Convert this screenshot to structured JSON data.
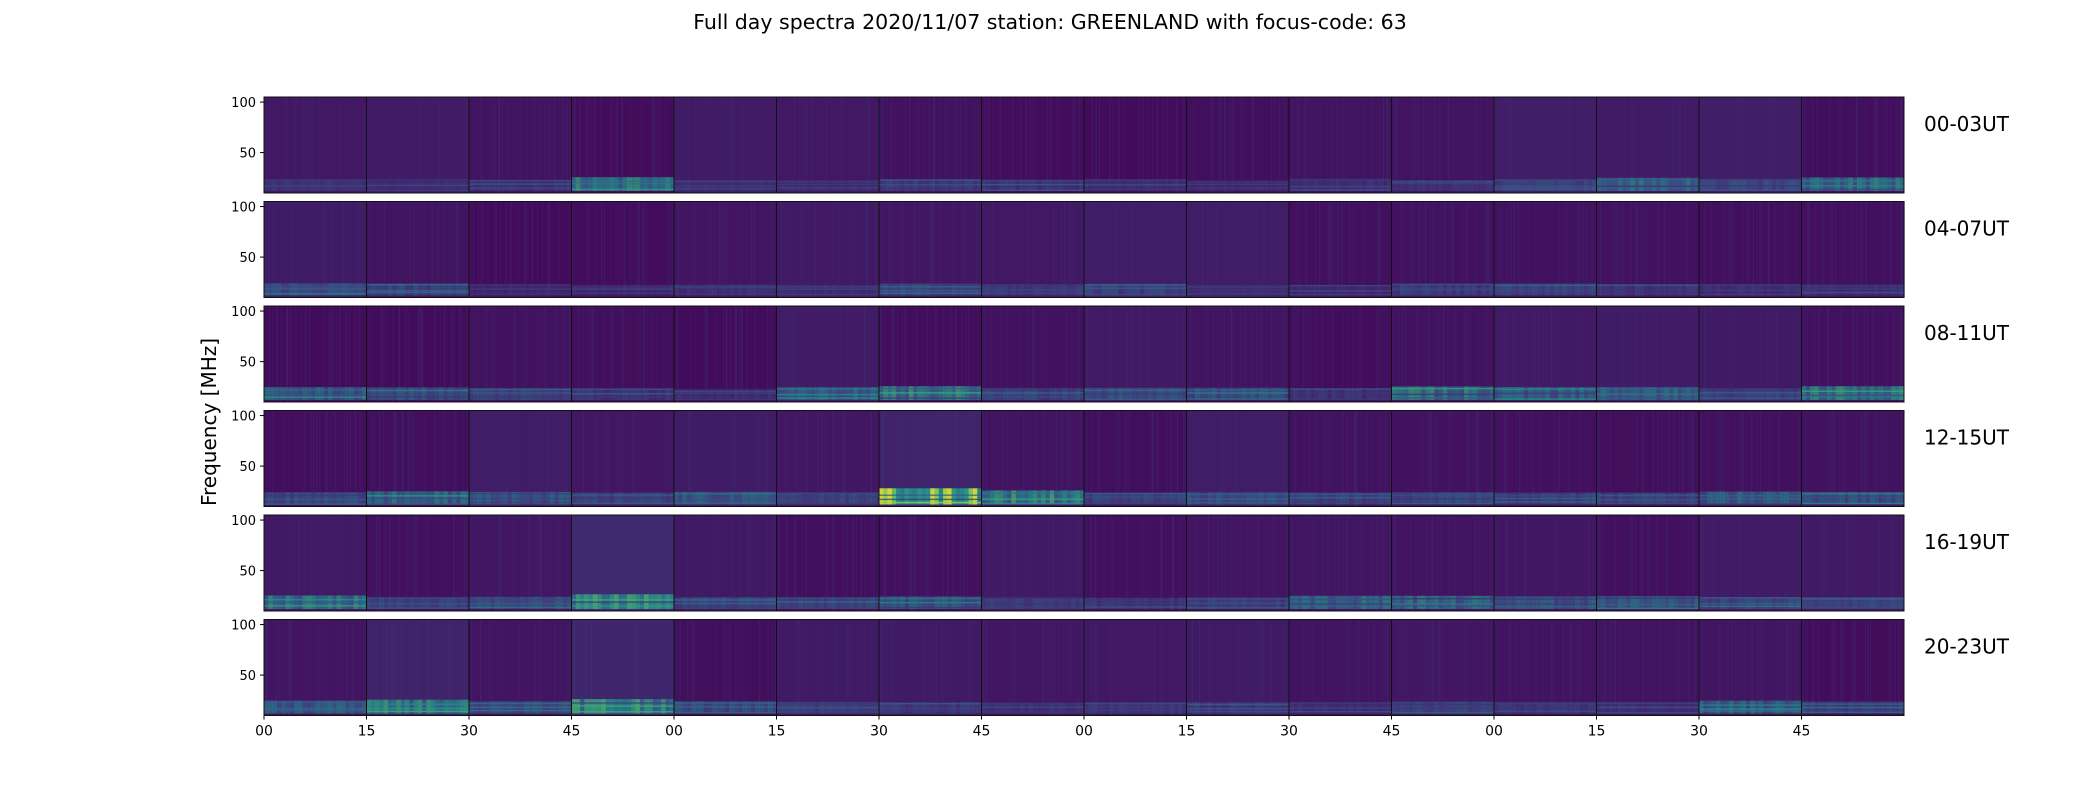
{
  "chart_data": {
    "type": "heatmap",
    "title": "Full day spectra 2020/11/07 station: GREENLAND with focus-code: 63",
    "ylabel": "Frequency [MHz]",
    "y_ticks": [
      "100",
      "50"
    ],
    "x_ticks": [
      "00",
      "15",
      "30",
      "45",
      "00",
      "15",
      "30",
      "45",
      "00",
      "15",
      "30",
      "45",
      "00",
      "15",
      "30",
      "45"
    ],
    "colormap": "viridis",
    "panels_per_row": 16,
    "panel_minutes": 15,
    "rows": [
      {
        "label": "00-03UT",
        "activity": [
          0.15,
          0.1,
          0.15,
          0.6,
          0.1,
          0.1,
          0.25,
          0.2,
          0.15,
          0.1,
          0.15,
          0.15,
          0.25,
          0.5,
          0.3,
          0.55
        ],
        "stripe_band": [
          0,
          0,
          0,
          0,
          0,
          0,
          0,
          0,
          0,
          0,
          0,
          0,
          0,
          0,
          0,
          0
        ]
      },
      {
        "label": "04-07UT",
        "activity": [
          0.35,
          0.3,
          0.1,
          0.1,
          0.15,
          0.1,
          0.3,
          0.2,
          0.25,
          0.1,
          0.1,
          0.25,
          0.3,
          0.2,
          0.15,
          0.15
        ],
        "stripe_band": [
          0,
          0,
          0,
          0,
          0,
          0,
          0,
          0,
          0,
          0,
          0,
          0,
          0,
          0,
          0,
          0
        ]
      },
      {
        "label": "08-11UT",
        "activity": [
          0.45,
          0.4,
          0.3,
          0.2,
          0.15,
          0.45,
          0.6,
          0.3,
          0.35,
          0.35,
          0.2,
          0.55,
          0.45,
          0.45,
          0.25,
          0.6
        ],
        "stripe_band": [
          0,
          0,
          0,
          0,
          0,
          0,
          0,
          0,
          0,
          0,
          0,
          0,
          0,
          0,
          0,
          0
        ]
      },
      {
        "label": "12-15UT",
        "activity": [
          0.35,
          0.5,
          0.4,
          0.3,
          0.4,
          0.3,
          1.0,
          0.65,
          0.3,
          0.35,
          0.3,
          0.35,
          0.3,
          0.3,
          0.45,
          0.4
        ],
        "stripe_band": [
          0,
          0,
          0,
          0,
          0,
          0,
          1,
          0,
          0,
          0,
          0,
          0,
          0,
          0,
          0,
          0
        ]
      },
      {
        "label": "16-19UT",
        "activity": [
          0.55,
          0.3,
          0.35,
          0.75,
          0.3,
          0.3,
          0.4,
          0.25,
          0.2,
          0.25,
          0.5,
          0.5,
          0.4,
          0.45,
          0.3,
          0.3
        ],
        "stripe_band": [
          0,
          0,
          0,
          1,
          0,
          0,
          0,
          0,
          0,
          0,
          0,
          0,
          0,
          0,
          0,
          0
        ]
      },
      {
        "label": "20-23UT",
        "activity": [
          0.45,
          0.6,
          0.35,
          0.7,
          0.35,
          0.25,
          0.2,
          0.15,
          0.2,
          0.2,
          0.15,
          0.3,
          0.2,
          0.15,
          0.45,
          0.3
        ],
        "stripe_band": [
          0,
          1,
          0,
          1,
          0,
          0,
          0,
          0,
          0,
          0,
          0,
          0,
          0,
          0,
          0,
          0
        ]
      }
    ]
  }
}
